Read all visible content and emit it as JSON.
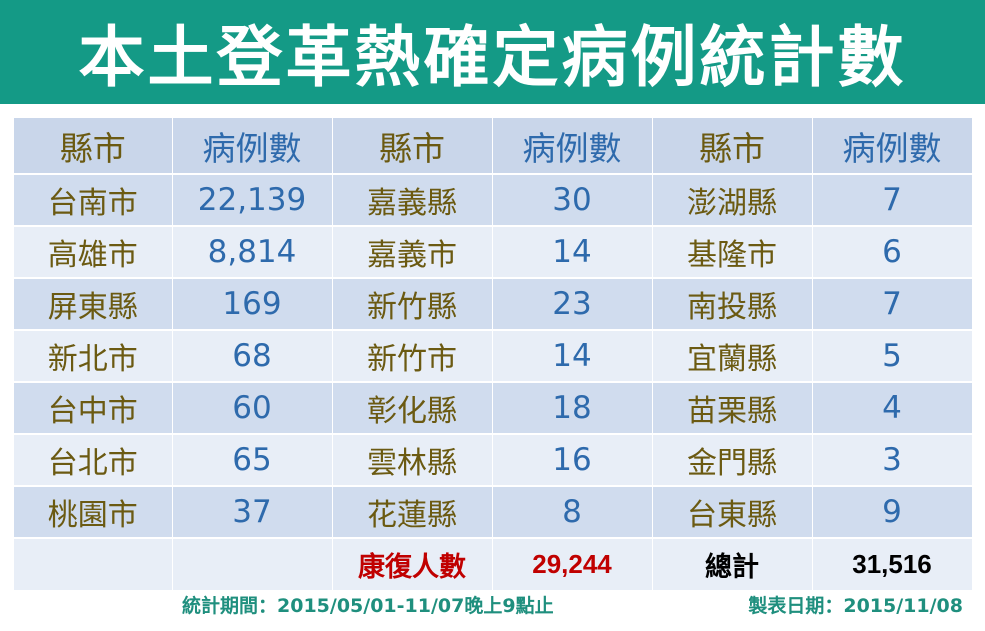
{
  "title": "本土登革熱確定病例統計數",
  "headers": [
    "縣市",
    "病例數",
    "縣市",
    "病例數",
    "縣市",
    "病例數"
  ],
  "rows": [
    [
      "台南市",
      "22,139",
      "嘉義縣",
      "30",
      "澎湖縣",
      "7"
    ],
    [
      "高雄市",
      "8,814",
      "嘉義市",
      "14",
      "基隆市",
      "6"
    ],
    [
      "屏東縣",
      "169",
      "新竹縣",
      "23",
      "南投縣",
      "7"
    ],
    [
      "新北市",
      "68",
      "新竹市",
      "14",
      "宜蘭縣",
      "5"
    ],
    [
      "台中市",
      "60",
      "彰化縣",
      "18",
      "苗栗縣",
      "4"
    ],
    [
      "台北市",
      "65",
      "雲林縣",
      "16",
      "金門縣",
      "3"
    ],
    [
      "桃園市",
      "37",
      "花蓮縣",
      "8",
      "台東縣",
      "9"
    ]
  ],
  "summary": {
    "recovered_label": "康復人數",
    "recovered_value": "29,244",
    "total_label": "總計",
    "total_value": "31,516"
  },
  "footer": {
    "period": "統計期間：2015/05/01-11/07晚上9點止",
    "date": "製表日期：2015/11/08"
  },
  "colors": {
    "banner": "#149a86",
    "county_text": "#6b5a12",
    "cases_text": "#2e6aac",
    "recovered_text": "#c00000",
    "footer_text": "#1f8f7e"
  }
}
